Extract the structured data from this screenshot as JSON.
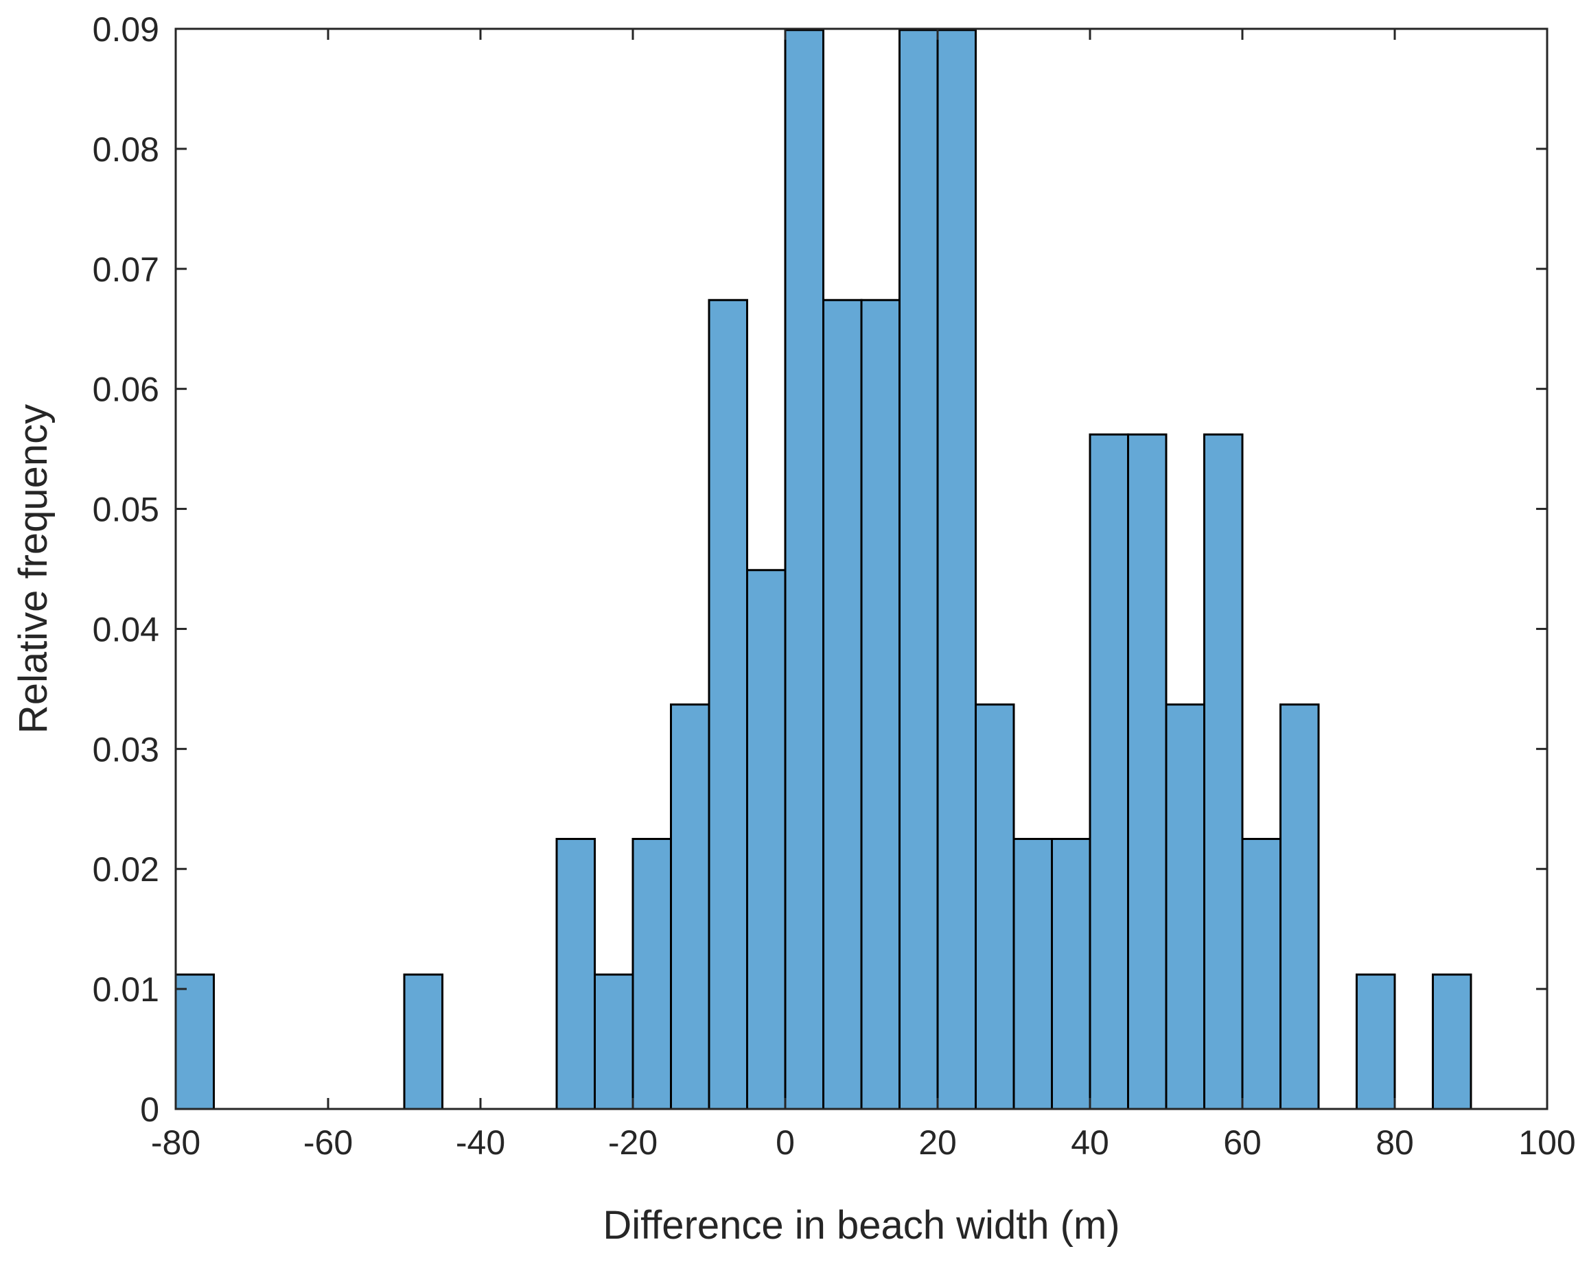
{
  "chart_data": {
    "type": "bar",
    "subtype": "histogram",
    "xlabel": "Difference in beach width (m)",
    "ylabel": "Relative frequency",
    "xlim": [
      -80,
      100
    ],
    "ylim": [
      0,
      0.09
    ],
    "xticks": [
      -80,
      -60,
      -40,
      -20,
      0,
      20,
      40,
      60,
      80,
      100
    ],
    "xtick_labels": [
      "-80",
      "-60",
      "-40",
      "-20",
      "0",
      "20",
      "40",
      "60",
      "80",
      "100"
    ],
    "yticks": [
      0,
      0.01,
      0.02,
      0.03,
      0.04,
      0.05,
      0.06,
      0.07,
      0.08,
      0.09
    ],
    "ytick_labels": [
      "0",
      "0.01",
      "0.02",
      "0.03",
      "0.04",
      "0.05",
      "0.06",
      "0.07",
      "0.08",
      "0.09"
    ],
    "bin_width": 5,
    "bins": [
      {
        "start": -80,
        "end": -75,
        "value": 0.0112
      },
      {
        "start": -50,
        "end": -45,
        "value": 0.0112
      },
      {
        "start": -30,
        "end": -25,
        "value": 0.0225
      },
      {
        "start": -25,
        "end": -20,
        "value": 0.0112
      },
      {
        "start": -20,
        "end": -15,
        "value": 0.0225
      },
      {
        "start": -15,
        "end": -10,
        "value": 0.0337
      },
      {
        "start": -10,
        "end": -5,
        "value": 0.0674
      },
      {
        "start": -5,
        "end": 0,
        "value": 0.0449
      },
      {
        "start": 0,
        "end": 5,
        "value": 0.0899
      },
      {
        "start": 5,
        "end": 10,
        "value": 0.0674
      },
      {
        "start": 10,
        "end": 15,
        "value": 0.0674
      },
      {
        "start": 15,
        "end": 20,
        "value": 0.0899
      },
      {
        "start": 20,
        "end": 25,
        "value": 0.0899
      },
      {
        "start": 25,
        "end": 30,
        "value": 0.0337
      },
      {
        "start": 30,
        "end": 35,
        "value": 0.0225
      },
      {
        "start": 35,
        "end": 40,
        "value": 0.0225
      },
      {
        "start": 40,
        "end": 45,
        "value": 0.0562
      },
      {
        "start": 45,
        "end": 50,
        "value": 0.0562
      },
      {
        "start": 50,
        "end": 55,
        "value": 0.0337
      },
      {
        "start": 55,
        "end": 60,
        "value": 0.0562
      },
      {
        "start": 60,
        "end": 65,
        "value": 0.0225
      },
      {
        "start": 65,
        "end": 70,
        "value": 0.0337
      },
      {
        "start": 75,
        "end": 80,
        "value": 0.0112
      },
      {
        "start": 85,
        "end": 90,
        "value": 0.0112
      }
    ],
    "bar_color": "#64a8d6",
    "edge_color": "#000000",
    "grid": false,
    "legend": "none"
  }
}
